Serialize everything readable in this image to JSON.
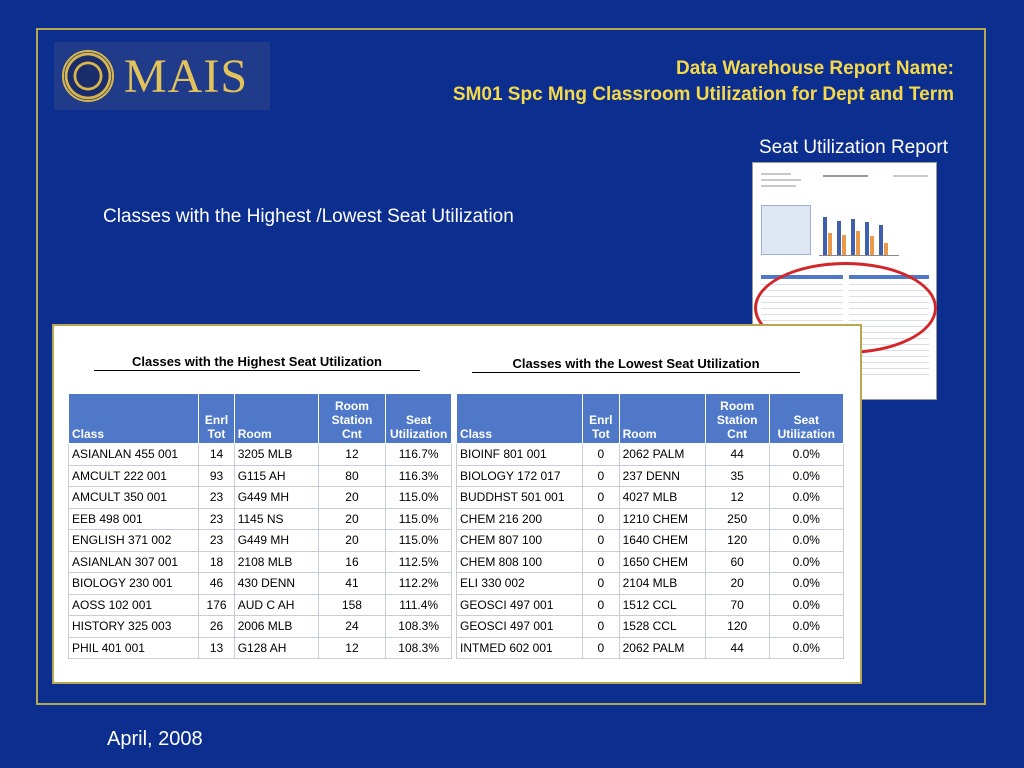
{
  "logo": {
    "text": "MAIS"
  },
  "header": {
    "line1": "Data Warehouse Report Name:",
    "line2": "SM01 Spc Mng Classroom Utilization for Dept and Term"
  },
  "subtitle": "Seat Utilization Report",
  "caption": "Classes with the Highest /Lowest Seat Utilization",
  "highest": {
    "title": "Classes with the Highest Seat Utilization",
    "headers": [
      "Class",
      "Enrl Tot",
      "Room",
      "Room Station Cnt",
      "Seat Utilization"
    ],
    "rows": [
      [
        "ASIANLAN 455 001",
        "14",
        "3205 MLB",
        "12",
        "116.7%"
      ],
      [
        "AMCULT 222 001",
        "93",
        "G115 AH",
        "80",
        "116.3%"
      ],
      [
        "AMCULT 350 001",
        "23",
        "G449 MH",
        "20",
        "115.0%"
      ],
      [
        "EEB 498 001",
        "23",
        "1145 NS",
        "20",
        "115.0%"
      ],
      [
        "ENGLISH 371 002",
        "23",
        "G449 MH",
        "20",
        "115.0%"
      ],
      [
        "ASIANLAN 307 001",
        "18",
        "2108 MLB",
        "16",
        "112.5%"
      ],
      [
        "BIOLOGY 230 001",
        "46",
        "430 DENN",
        "41",
        "112.2%"
      ],
      [
        "AOSS 102 001",
        "176",
        "AUD C AH",
        "158",
        "111.4%"
      ],
      [
        "HISTORY 325 003",
        "26",
        "2006 MLB",
        "24",
        "108.3%"
      ],
      [
        "PHIL 401 001",
        "13",
        "G128 AH",
        "12",
        "108.3%"
      ]
    ]
  },
  "lowest": {
    "title": "Classes with the Lowest Seat Utilization",
    "headers": [
      "Class",
      "Enrl Tot",
      "Room",
      "Room Station Cnt",
      "Seat Utilization"
    ],
    "rows": [
      [
        "BIOINF 801 001",
        "0",
        "2062 PALM",
        "44",
        "0.0%"
      ],
      [
        "BIOLOGY 172 017",
        "0",
        "237 DENN",
        "35",
        "0.0%"
      ],
      [
        "BUDDHST 501 001",
        "0",
        "4027 MLB",
        "12",
        "0.0%"
      ],
      [
        "CHEM 216 200",
        "0",
        "1210 CHEM",
        "250",
        "0.0%"
      ],
      [
        "CHEM 807 100",
        "0",
        "1640 CHEM",
        "120",
        "0.0%"
      ],
      [
        "CHEM 808 100",
        "0",
        "1650 CHEM",
        "60",
        "0.0%"
      ],
      [
        "ELI 330 002",
        "0",
        "2104 MLB",
        "20",
        "0.0%"
      ],
      [
        "GEOSCI 497 001",
        "0",
        "1512 CCL",
        "70",
        "0.0%"
      ],
      [
        "GEOSCI 497 001",
        "0",
        "1528 CCL",
        "120",
        "0.0%"
      ],
      [
        "INTMED 602 001",
        "0",
        "2062 PALM",
        "44",
        "0.0%"
      ]
    ]
  },
  "footer": {
    "date": "April, 2008"
  }
}
